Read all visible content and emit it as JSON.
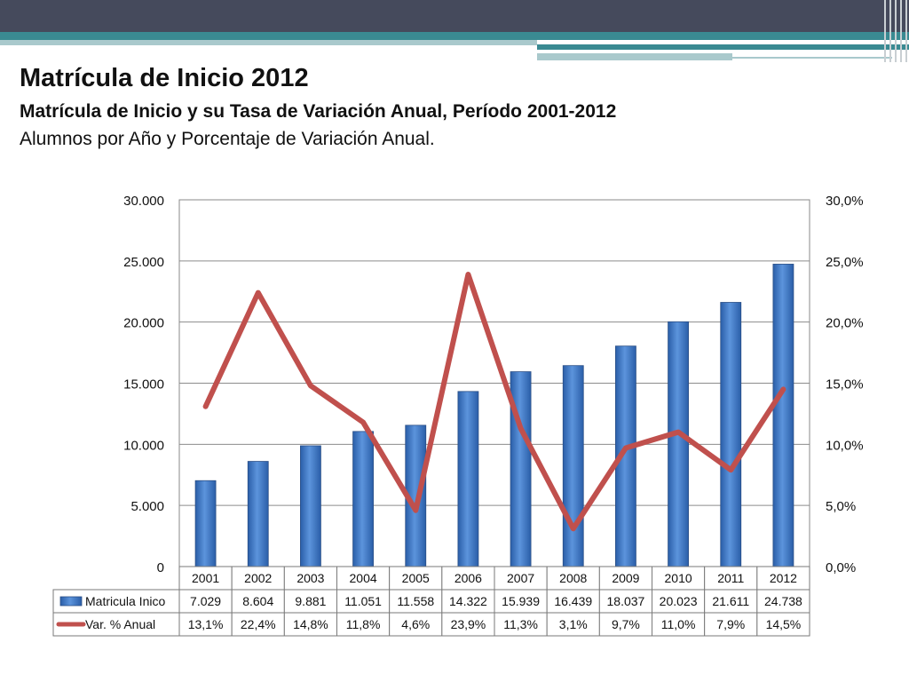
{
  "slide": {
    "title": "Matrícula de Inicio 2012",
    "subtitle": "Matrícula de Inicio y su Tasa de Variación Anual, Período 2001-2012",
    "subtitle2": "Alumnos por Año y Porcentaje de Variación Anual."
  },
  "colors": {
    "bar": "#3a75c4",
    "line": "#c0504d",
    "header": "#454a5c",
    "teal": "#3a8a92"
  },
  "chart_data": {
    "type": "bar",
    "categories": [
      "2001",
      "2002",
      "2003",
      "2004",
      "2005",
      "2006",
      "2007",
      "2008",
      "2009",
      "2010",
      "2011",
      "2012"
    ],
    "series": [
      {
        "name": "Matricula Inico",
        "type": "bar",
        "axis": "left",
        "values": [
          7029,
          8604,
          9881,
          11051,
          11558,
          14322,
          15939,
          16439,
          18037,
          20023,
          21611,
          24738
        ],
        "labels": [
          "7.029",
          "8.604",
          "9.881",
          "11.051",
          "11.558",
          "14.322",
          "15.939",
          "16.439",
          "18.037",
          "20.023",
          "21.611",
          "24.738"
        ]
      },
      {
        "name": "Var. % Anual",
        "type": "line",
        "axis": "right",
        "values": [
          13.1,
          22.4,
          14.8,
          11.8,
          4.6,
          23.9,
          11.3,
          3.1,
          9.7,
          11.0,
          7.9,
          14.5
        ],
        "labels": [
          "13,1%",
          "22,4%",
          "14,8%",
          "11,8%",
          "4,6%",
          "23,9%",
          "11,3%",
          "3,1%",
          "9,7%",
          "11,0%",
          "7,9%",
          "14,5%"
        ]
      }
    ],
    "ylim": [
      0,
      30000
    ],
    "y2lim": [
      0,
      30
    ],
    "y_ticks": [
      "0",
      "5.000",
      "10.000",
      "15.000",
      "20.000",
      "25.000",
      "30.000"
    ],
    "y2_ticks": [
      "0,0%",
      "5,0%",
      "10,0%",
      "15,0%",
      "20,0%",
      "25,0%",
      "30,0%"
    ],
    "grid": true,
    "legend": "data-table-bottom"
  }
}
